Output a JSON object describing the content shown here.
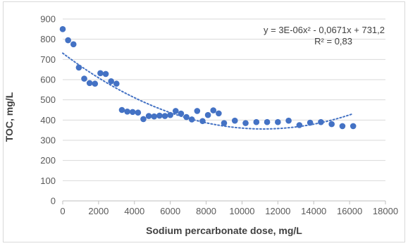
{
  "chart_data": {
    "type": "scatter",
    "xlabel": "Sodium percarbonate dose, mg/L",
    "ylabel": "TOC, mg/L",
    "xlim": [
      0,
      18000
    ],
    "ylim": [
      0,
      900
    ],
    "x_ticks": [
      0,
      2000,
      4000,
      6000,
      8000,
      10000,
      12000,
      14000,
      16000,
      18000
    ],
    "y_ticks": [
      0,
      100,
      200,
      300,
      400,
      500,
      600,
      700,
      800,
      900
    ],
    "grid": "horizontal",
    "legend": "none",
    "marker_color": "#4472c4",
    "trendline": {
      "type": "polynomial",
      "order": 2,
      "style": "dotted",
      "color": "#4472c4",
      "x_range": [
        0,
        16200
      ],
      "coefficients": [
        3e-06,
        -0.0671,
        731.2
      ],
      "equation": "y = 3E-06x² - 0,0671x + 731,2",
      "r_squared": "R² = 0,83"
    },
    "points": [
      [
        0,
        850
      ],
      [
        300,
        795
      ],
      [
        600,
        775
      ],
      [
        900,
        660
      ],
      [
        1200,
        605
      ],
      [
        1500,
        583
      ],
      [
        1800,
        580
      ],
      [
        2100,
        632
      ],
      [
        2400,
        628
      ],
      [
        2700,
        592
      ],
      [
        3000,
        580
      ],
      [
        3300,
        450
      ],
      [
        3600,
        442
      ],
      [
        3900,
        440
      ],
      [
        4200,
        437
      ],
      [
        4500,
        405
      ],
      [
        4800,
        420
      ],
      [
        5100,
        418
      ],
      [
        5400,
        422
      ],
      [
        5700,
        420
      ],
      [
        6000,
        425
      ],
      [
        6300,
        445
      ],
      [
        6600,
        432
      ],
      [
        6900,
        415
      ],
      [
        7200,
        403
      ],
      [
        7500,
        445
      ],
      [
        7800,
        395
      ],
      [
        8100,
        425
      ],
      [
        8400,
        448
      ],
      [
        8700,
        433
      ],
      [
        9000,
        385
      ],
      [
        9600,
        397
      ],
      [
        10200,
        385
      ],
      [
        10800,
        390
      ],
      [
        11400,
        390
      ],
      [
        12000,
        390
      ],
      [
        12600,
        397
      ],
      [
        13200,
        375
      ],
      [
        13800,
        387
      ],
      [
        14400,
        390
      ],
      [
        15000,
        380
      ],
      [
        15600,
        370
      ],
      [
        16200,
        370
      ]
    ]
  }
}
